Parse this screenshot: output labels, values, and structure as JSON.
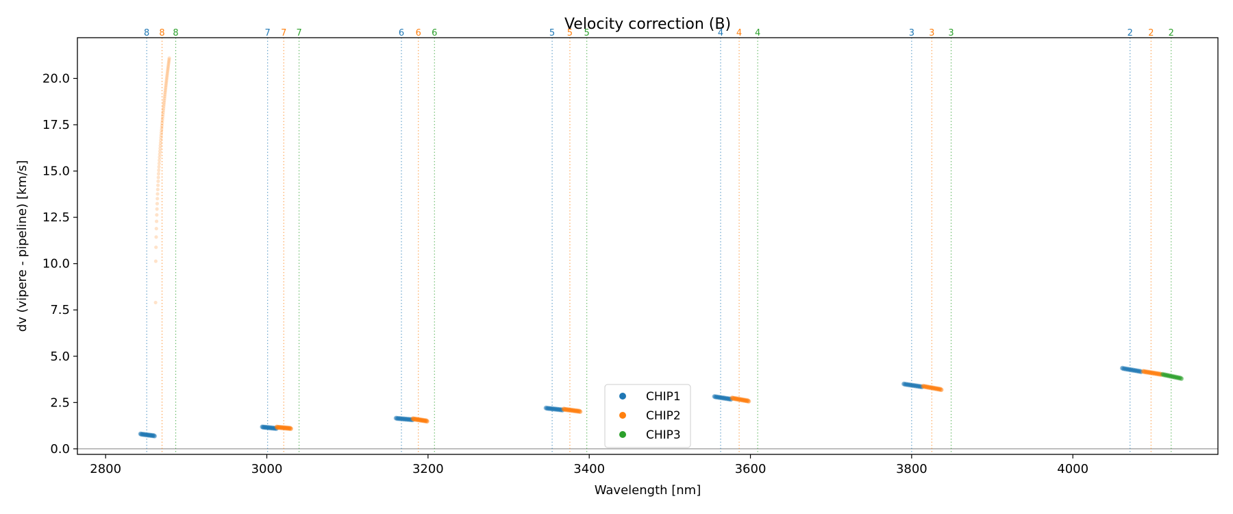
{
  "chart_data": {
    "type": "scatter",
    "title": "Velocity correction (B)",
    "xlabel": "Wavelength [nm]",
    "ylabel": "dv (vipere - pipeline) [km/s]",
    "xlim": [
      2765,
      4180
    ],
    "ylim": [
      -0.3,
      22.2
    ],
    "xticks": [
      2800,
      3000,
      3200,
      3400,
      3600,
      3800,
      4000
    ],
    "xtick_labels": [
      "2800",
      "3000",
      "3200",
      "3400",
      "3600",
      "3800",
      "4000"
    ],
    "yticks": [
      0.0,
      2.5,
      5.0,
      7.5,
      10.0,
      12.5,
      15.0,
      17.5,
      20.0
    ],
    "ytick_labels": [
      "0.0",
      "2.5",
      "5.0",
      "7.5",
      "10.0",
      "12.5",
      "15.0",
      "17.5",
      "20.0"
    ],
    "zero_line": 0,
    "colors": {
      "CHIP1": "#1f77b4",
      "CHIP2": "#ff7f0e",
      "CHIP3": "#2ca02c"
    },
    "legend": {
      "placement": "lower-center",
      "entries": [
        "CHIP1",
        "CHIP2",
        "CHIP3"
      ]
    },
    "order_markers": [
      {
        "order": "8",
        "chip": "CHIP1",
        "x": 2851
      },
      {
        "order": "8",
        "chip": "CHIP2",
        "x": 2870
      },
      {
        "order": "8",
        "chip": "CHIP3",
        "x": 2887
      },
      {
        "order": "7",
        "chip": "CHIP1",
        "x": 3001
      },
      {
        "order": "7",
        "chip": "CHIP2",
        "x": 3021
      },
      {
        "order": "7",
        "chip": "CHIP3",
        "x": 3040
      },
      {
        "order": "6",
        "chip": "CHIP1",
        "x": 3167
      },
      {
        "order": "6",
        "chip": "CHIP2",
        "x": 3188
      },
      {
        "order": "6",
        "chip": "CHIP3",
        "x": 3208
      },
      {
        "order": "5",
        "chip": "CHIP1",
        "x": 3354
      },
      {
        "order": "5",
        "chip": "CHIP2",
        "x": 3376
      },
      {
        "order": "5",
        "chip": "CHIP3",
        "x": 3397
      },
      {
        "order": "4",
        "chip": "CHIP1",
        "x": 3563
      },
      {
        "order": "4",
        "chip": "CHIP2",
        "x": 3586
      },
      {
        "order": "4",
        "chip": "CHIP3",
        "x": 3609
      },
      {
        "order": "3",
        "chip": "CHIP1",
        "x": 3800
      },
      {
        "order": "3",
        "chip": "CHIP2",
        "x": 3825
      },
      {
        "order": "3",
        "chip": "CHIP3",
        "x": 3849
      },
      {
        "order": "2",
        "chip": "CHIP1",
        "x": 4071
      },
      {
        "order": "2",
        "chip": "CHIP2",
        "x": 4097
      },
      {
        "order": "2",
        "chip": "CHIP3",
        "x": 4122
      }
    ],
    "series": [
      {
        "name": "CHIP1",
        "segments": [
          {
            "order": 8,
            "x": [
              2843,
              2861
            ],
            "y": [
              0.8,
              0.7
            ]
          },
          {
            "order": 7,
            "x": [
              2994,
              3012
            ],
            "y": [
              1.18,
              1.1
            ]
          },
          {
            "order": 6,
            "x": [
              3160,
              3181
            ],
            "y": [
              1.65,
              1.57
            ]
          },
          {
            "order": 5,
            "x": [
              3346,
              3367
            ],
            "y": [
              2.2,
              2.1
            ]
          },
          {
            "order": 4,
            "x": [
              3555,
              3576
            ],
            "y": [
              2.82,
              2.68
            ]
          },
          {
            "order": 3,
            "x": [
              3790,
              3813
            ],
            "y": [
              3.5,
              3.35
            ]
          },
          {
            "order": 2,
            "x": [
              4061,
              4085
            ],
            "y": [
              4.35,
              4.17
            ]
          }
        ]
      },
      {
        "name": "CHIP2",
        "segments": [
          {
            "order": 8,
            "x": [
              2862,
              2879
            ],
            "y": [
              7.9,
              21.1
            ],
            "curve": "steep",
            "faint": true
          },
          {
            "order": 7,
            "x": [
              3012,
              3030
            ],
            "y": [
              1.17,
              1.1
            ]
          },
          {
            "order": 6,
            "x": [
              3181,
              3199
            ],
            "y": [
              1.62,
              1.5
            ]
          },
          {
            "order": 5,
            "x": [
              3368,
              3389
            ],
            "y": [
              2.14,
              2.02
            ]
          },
          {
            "order": 4,
            "x": [
              3577,
              3598
            ],
            "y": [
              2.74,
              2.58
            ]
          },
          {
            "order": 3,
            "x": [
              3814,
              3837
            ],
            "y": [
              3.38,
              3.2
            ]
          },
          {
            "order": 2,
            "x": [
              4087,
              4110
            ],
            "y": [
              4.18,
              4.02
            ]
          }
        ]
      },
      {
        "name": "CHIP3",
        "segments": [
          {
            "order": 2,
            "x": [
              4111,
              4135
            ],
            "y": [
              4.02,
              3.8
            ]
          }
        ]
      }
    ]
  }
}
